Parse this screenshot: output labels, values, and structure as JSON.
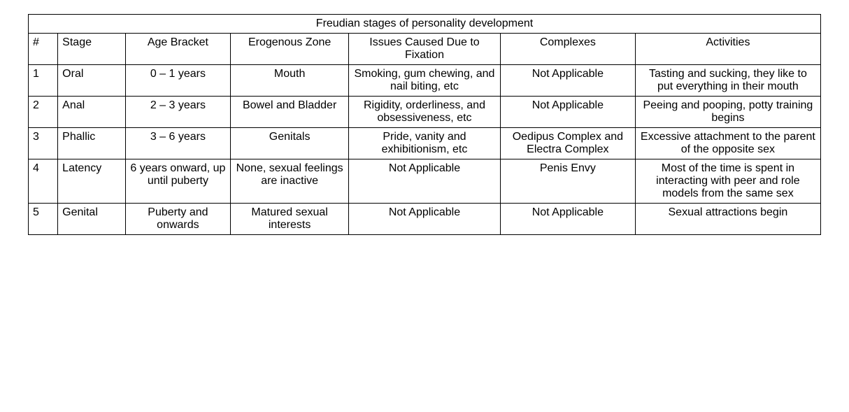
{
  "table": {
    "type": "table",
    "title": "Freudian stages of personality development",
    "background_color": "#ffffff",
    "border_color": "#000000",
    "text_color": "#000000",
    "font_family": "Verdana",
    "font_size_pt": 12,
    "column_widths_pct": [
      3.5,
      8,
      12.5,
      14,
      18,
      16,
      22
    ],
    "columns": [
      "#",
      "Stage",
      "Age Bracket",
      "Erogenous Zone",
      "Issues Caused Due to Fixation",
      "Complexes",
      "Activities"
    ],
    "column_align": [
      "left",
      "left",
      "center",
      "center",
      "center",
      "center",
      "center"
    ],
    "rows": [
      {
        "num": "1",
        "stage": "Oral",
        "age": "0 – 1 years",
        "zone": "Mouth",
        "issues": "Smoking, gum chewing, and nail biting, etc",
        "complexes": "Not Applicable",
        "activities": "Tasting and sucking, they like to put everything in their mouth"
      },
      {
        "num": "2",
        "stage": "Anal",
        "age": "2 – 3 years",
        "zone": "Bowel and Bladder",
        "issues": "Rigidity, orderliness, and obsessiveness, etc",
        "complexes": "Not Applicable",
        "activities": "Peeing and pooping, potty training begins"
      },
      {
        "num": "3",
        "stage": "Phallic",
        "age": "3 – 6 years",
        "zone": "Genitals",
        "issues": "Pride, vanity and exhibitionism, etc",
        "complexes": "Oedipus Complex and Electra Complex",
        "activities": "Excessive attachment to the parent of the opposite sex"
      },
      {
        "num": "4",
        "stage": "Latency",
        "age": "6 years onward, up until puberty",
        "zone": "None, sexual feelings are inactive",
        "issues": "Not Applicable",
        "complexes": "Penis Envy",
        "activities": "Most of the time is spent in interacting with peer and role models from the same sex"
      },
      {
        "num": "5",
        "stage": "Genital",
        "age": "Puberty and onwards",
        "zone": "Matured sexual interests",
        "issues": "Not Applicable",
        "complexes": "Not Applicable",
        "activities": "Sexual attractions begin"
      }
    ]
  }
}
